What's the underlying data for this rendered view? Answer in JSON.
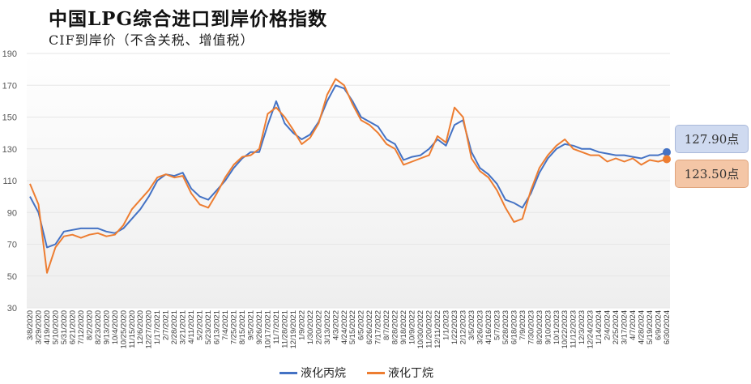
{
  "title": "中国LPG综合进口到岸价格指数",
  "subtitle": "CIF到岸价（不含关税、增值税）",
  "callouts": {
    "propane": "127.90点",
    "butane": "123.50点"
  },
  "colors": {
    "propane": "#4472c4",
    "butane": "#ed7d31",
    "grid": "#e6e6e6",
    "axis_text": "#595959"
  },
  "chart_data": {
    "type": "line",
    "title": "中国LPG综合进口到岸价格指数",
    "subtitle": "CIF到岸价（不含关税、增值税）",
    "ylim": [
      30,
      190
    ],
    "yticks": [
      30,
      50,
      70,
      90,
      110,
      130,
      150,
      170,
      190
    ],
    "grid": true,
    "legend": "bottom",
    "x_tick_labels": [
      "3/8/2020",
      "3/29/2020",
      "4/19/2020",
      "5/10/2020",
      "5/31/2020",
      "6/21/2020",
      "7/12/2020",
      "8/2/2020",
      "8/23/2020",
      "9/13/2020",
      "10/4/2020",
      "10/25/2020",
      "11/15/2020",
      "12/6/2020",
      "12/27/2020",
      "1/17/2021",
      "2/7/2021",
      "2/28/2021",
      "3/21/2021",
      "4/11/2021",
      "5/2/2021",
      "5/23/2021",
      "6/13/2021",
      "7/4/2021",
      "7/25/2021",
      "8/15/2021",
      "9/5/2021",
      "9/26/2021",
      "10/17/2021",
      "11/7/2021",
      "11/28/2021",
      "12/19/2021",
      "1/9/2022",
      "1/30/2022",
      "2/20/2022",
      "3/13/2022",
      "4/3/2022",
      "4/24/2022",
      "5/15/2022",
      "6/5/2022",
      "6/26/2022",
      "7/17/2022",
      "8/7/2022",
      "8/28/2022",
      "9/18/2022",
      "10/9/2022",
      "10/30/2022",
      "11/20/2022",
      "12/11/2022",
      "1/1/2023",
      "1/22/2023",
      "2/12/2023",
      "3/5/2023",
      "3/26/2023",
      "4/16/2023",
      "5/7/2023",
      "5/28/2023",
      "6/18/2023",
      "7/9/2023",
      "7/30/2023",
      "8/20/2023",
      "9/10/2023",
      "10/1/2023",
      "10/22/2023",
      "11/12/2023",
      "12/3/2023",
      "12/24/2023",
      "1/14/2024",
      "2/4/2024",
      "2/25/2024",
      "3/17/2024",
      "4/7/2024",
      "4/28/2024",
      "5/19/2024",
      "6/9/2024",
      "6/30/2024"
    ],
    "series": [
      {
        "name": "液化丙烷",
        "color": "#4472c4",
        "x": [
          "2020-03-08",
          "2020-03-29",
          "2020-04-19",
          "2020-05-10",
          "2020-05-31",
          "2020-06-21",
          "2020-07-12",
          "2020-08-02",
          "2020-08-23",
          "2020-09-13",
          "2020-10-04",
          "2020-10-25",
          "2020-11-15",
          "2020-12-06",
          "2020-12-27",
          "2021-01-17",
          "2021-02-07",
          "2021-02-28",
          "2021-03-21",
          "2021-04-11",
          "2021-05-02",
          "2021-05-23",
          "2021-06-13",
          "2021-07-04",
          "2021-07-25",
          "2021-08-15",
          "2021-09-05",
          "2021-09-26",
          "2021-10-17",
          "2021-11-07",
          "2021-11-28",
          "2021-12-19",
          "2022-01-09",
          "2022-01-30",
          "2022-02-20",
          "2022-03-13",
          "2022-04-03",
          "2022-04-24",
          "2022-05-15",
          "2022-06-05",
          "2022-06-26",
          "2022-07-17",
          "2022-08-07",
          "2022-08-28",
          "2022-09-18",
          "2022-10-09",
          "2022-10-30",
          "2022-11-20",
          "2022-12-11",
          "2023-01-01",
          "2023-01-22",
          "2023-02-12",
          "2023-03-05",
          "2023-03-26",
          "2023-04-16",
          "2023-05-07",
          "2023-05-28",
          "2023-06-18",
          "2023-07-09",
          "2023-07-30",
          "2023-08-20",
          "2023-09-10",
          "2023-10-01",
          "2023-10-22",
          "2023-11-12",
          "2023-12-03",
          "2023-12-24",
          "2024-01-14",
          "2024-02-04",
          "2024-02-25",
          "2024-03-17",
          "2024-04-07",
          "2024-04-28",
          "2024-05-19",
          "2024-06-09",
          "2024-06-30"
        ],
        "values": [
          100,
          90,
          68,
          70,
          78,
          79,
          80,
          80,
          80,
          78,
          77,
          80,
          86,
          92,
          100,
          110,
          114,
          113,
          115,
          105,
          100,
          98,
          104,
          110,
          118,
          124,
          128,
          128,
          145,
          160,
          146,
          140,
          136,
          139,
          147,
          160,
          170,
          168,
          160,
          150,
          147,
          144,
          136,
          133,
          123,
          125,
          126,
          130,
          136,
          132,
          145,
          148,
          128,
          118,
          114,
          108,
          98,
          96,
          93,
          102,
          115,
          124,
          130,
          133,
          132,
          130,
          130,
          128,
          127,
          126,
          126,
          125,
          124,
          126,
          126,
          127.9
        ]
      },
      {
        "name": "液化丁烷",
        "color": "#ed7d31",
        "x": [
          "2020-03-08",
          "2020-03-29",
          "2020-04-19",
          "2020-05-10",
          "2020-05-31",
          "2020-06-21",
          "2020-07-12",
          "2020-08-02",
          "2020-08-23",
          "2020-09-13",
          "2020-10-04",
          "2020-10-25",
          "2020-11-15",
          "2020-12-06",
          "2020-12-27",
          "2021-01-17",
          "2021-02-07",
          "2021-02-28",
          "2021-03-21",
          "2021-04-11",
          "2021-05-02",
          "2021-05-23",
          "2021-06-13",
          "2021-07-04",
          "2021-07-25",
          "2021-08-15",
          "2021-09-05",
          "2021-09-26",
          "2021-10-17",
          "2021-11-07",
          "2021-11-28",
          "2021-12-19",
          "2022-01-09",
          "2022-01-30",
          "2022-02-20",
          "2022-03-13",
          "2022-04-03",
          "2022-04-24",
          "2022-05-15",
          "2022-06-05",
          "2022-06-26",
          "2022-07-17",
          "2022-08-07",
          "2022-08-28",
          "2022-09-18",
          "2022-10-09",
          "2022-10-30",
          "2022-11-20",
          "2022-12-11",
          "2023-01-01",
          "2023-01-22",
          "2023-02-12",
          "2023-03-05",
          "2023-03-26",
          "2023-04-16",
          "2023-05-07",
          "2023-05-28",
          "2023-06-18",
          "2023-07-09",
          "2023-07-30",
          "2023-08-20",
          "2023-09-10",
          "2023-10-01",
          "2023-10-22",
          "2023-11-12",
          "2023-12-03",
          "2023-12-24",
          "2024-01-14",
          "2024-02-04",
          "2024-02-25",
          "2024-03-17",
          "2024-04-07",
          "2024-04-28",
          "2024-05-19",
          "2024-06-09",
          "2024-06-30"
        ],
        "values": [
          108,
          95,
          52,
          68,
          75,
          76,
          74,
          76,
          77,
          75,
          76,
          82,
          92,
          98,
          104,
          112,
          114,
          112,
          113,
          102,
          95,
          93,
          102,
          112,
          120,
          125,
          126,
          130,
          152,
          156,
          150,
          142,
          133,
          137,
          146,
          164,
          174,
          170,
          158,
          148,
          145,
          140,
          133,
          130,
          120,
          122,
          124,
          126,
          138,
          134,
          156,
          150,
          124,
          116,
          112,
          104,
          93,
          84,
          86,
          104,
          118,
          126,
          132,
          136,
          130,
          128,
          126,
          126,
          122,
          124,
          122,
          124,
          120,
          123,
          122,
          123.5
        ]
      }
    ]
  }
}
